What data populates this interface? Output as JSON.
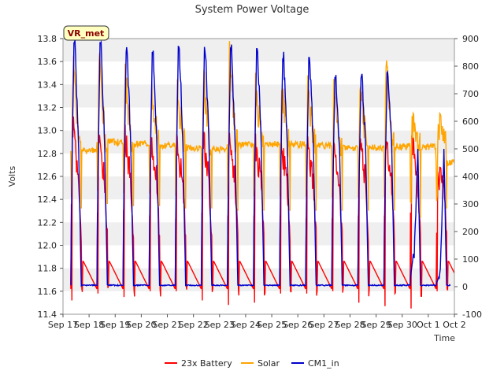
{
  "chart_data": {
    "type": "line",
    "title": "System Power Voltage",
    "xlabel": "Time",
    "ylabel": "Volts",
    "badge": "VR_met",
    "x_ticks": [
      "Sep 17",
      "Sep 18",
      "Sep 19",
      "Sep 20",
      "Sep 21",
      "Sep 22",
      "Sep 23",
      "Sep 24",
      "Sep 25",
      "Sep 26",
      "Sep 27",
      "Sep 28",
      "Sep 29",
      "Sep 30",
      "Oct 1",
      "Oct 2"
    ],
    "xlim_days": [
      0,
      15
    ],
    "ylim_left": [
      11.4,
      13.8
    ],
    "yticks_left": [
      "11.4",
      "11.6",
      "11.8",
      "12.0",
      "12.2",
      "12.4",
      "12.6",
      "12.8",
      "13.0",
      "13.2",
      "13.4",
      "13.6",
      "13.8"
    ],
    "ylim_right": [
      -100,
      900
    ],
    "yticks_right": [
      "-100",
      "0",
      "100",
      "200",
      "300",
      "400",
      "500",
      "600",
      "700",
      "800",
      "900"
    ],
    "grid": "horizontal bands",
    "legend_position": "bottom",
    "series": [
      {
        "name": "23x Battery",
        "axis": "left",
        "color": "#ff0000",
        "day_start": 0.3,
        "peaks": [
          13.1,
          12.95,
          13.0,
          12.9,
          12.85,
          12.95,
          12.9,
          12.9,
          12.9,
          12.85,
          12.85,
          12.9,
          12.9,
          12.95,
          12.6
        ],
        "evening": 11.86,
        "night_end": 11.62,
        "dips": [
          11.52,
          11.58,
          11.55,
          11.6,
          11.6,
          11.52,
          11.48,
          11.5,
          11.58,
          11.58,
          11.6,
          11.5,
          11.47,
          11.45,
          11.6
        ]
      },
      {
        "name": "Solar",
        "axis": "left",
        "color": "#ffa500",
        "day_start": 0.3,
        "peaks": [
          13.6,
          13.68,
          13.5,
          13.35,
          13.32,
          13.47,
          13.68,
          13.4,
          13.45,
          13.35,
          13.38,
          13.32,
          13.62,
          13.07,
          13.07
        ],
        "night": [
          12.82,
          12.9,
          12.88,
          12.87,
          12.85,
          12.84,
          12.88,
          12.88,
          12.88,
          12.87,
          12.85,
          12.85,
          12.86,
          12.86,
          12.72
        ],
        "drops": [
          12.22,
          12.26,
          12.24,
          12.24,
          12.22,
          12.22,
          12.2,
          12.2,
          12.2,
          12.2,
          12.2,
          12.2,
          12.2,
          12.14,
          12.22
        ]
      },
      {
        "name": "CM1_in",
        "axis": "right",
        "color": "#0000cc",
        "day_start": 0.3,
        "peaks": [
          880,
          880,
          860,
          850,
          870,
          860,
          860,
          860,
          830,
          825,
          755,
          755,
          770,
          110,
          40
        ],
        "base": [
          5,
          5,
          5,
          5,
          5,
          5,
          5,
          5,
          5,
          5,
          5,
          5,
          5,
          5,
          5
        ]
      }
    ]
  }
}
